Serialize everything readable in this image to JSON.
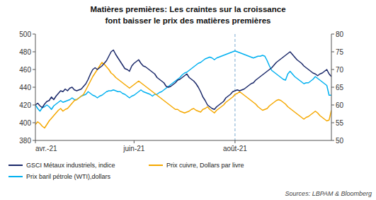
{
  "chart_data": {
    "type": "line",
    "title": "Matières premières: Les craintes sur la croissance",
    "subtitle": "font baisser le prix des matières premières",
    "source": "Sources: LBPAM & Bloomberg",
    "categories": [
      "avr.-21",
      null,
      null,
      null,
      null,
      null,
      null,
      null,
      null,
      null,
      null,
      null,
      null,
      null,
      null,
      null,
      null,
      null,
      null,
      null,
      null,
      null,
      null,
      null,
      null,
      null,
      null,
      null,
      null,
      null,
      null,
      null,
      null,
      null,
      null,
      null,
      null,
      null,
      null,
      null,
      null,
      null,
      null,
      "juin-21",
      null,
      null,
      null,
      null,
      null,
      null,
      null,
      null,
      null,
      null,
      null,
      null,
      null,
      null,
      null,
      null,
      null,
      null,
      null,
      null,
      null,
      null,
      null,
      null,
      null,
      null,
      null,
      null,
      null,
      null,
      null,
      null,
      null,
      null,
      null,
      null,
      null,
      null,
      null,
      null,
      null,
      null,
      null,
      "août-21",
      null,
      null,
      null,
      null,
      null,
      null,
      null,
      null,
      null,
      null,
      null,
      null,
      null,
      null,
      null,
      null,
      null,
      null,
      null,
      null,
      null,
      null,
      null,
      null,
      null,
      null,
      null,
      null,
      null,
      null,
      null,
      null,
      null,
      null,
      null,
      null,
      null,
      null,
      null,
      null,
      null,
      null
    ],
    "series": [
      {
        "name": "GSCI Métaux industriels, indice",
        "color": "#1a2869",
        "values": [
          420,
          422,
          419,
          417,
          421,
          424,
          425,
          429,
          426,
          430,
          433,
          436,
          435,
          438,
          436,
          439,
          440,
          437,
          436,
          437,
          438,
          441,
          444,
          449,
          455,
          460,
          462,
          460,
          462,
          464,
          467,
          470,
          475,
          480,
          482,
          477,
          473,
          469,
          465,
          461,
          460,
          458,
          464,
          467,
          469,
          471,
          467,
          464,
          463,
          461,
          459,
          457,
          455,
          451,
          449,
          447,
          445,
          441,
          440,
          441,
          443,
          445,
          448,
          449,
          451,
          453,
          455,
          451,
          449,
          447,
          444,
          440,
          435,
          429,
          425,
          420,
          418,
          416,
          415,
          418,
          420,
          422,
          424,
          428,
          430,
          432,
          435,
          436,
          437,
          436,
          437,
          438,
          440,
          442,
          444,
          445,
          448,
          450,
          452,
          454,
          456,
          458,
          460,
          462,
          465,
          468,
          470,
          472,
          474,
          476,
          478,
          480,
          477,
          474,
          471,
          469,
          467,
          464,
          462,
          460,
          458,
          456,
          455,
          453,
          455,
          456,
          458,
          460,
          455,
          452
        ]
      },
      {
        "name": "Prix cuivre, Dollars par livre",
        "color": "#f5a800",
        "values": [
          398,
          401,
          399,
          396,
          394,
          398,
          402,
          405,
          408,
          411,
          414,
          416,
          413,
          415,
          416,
          419,
          422,
          425,
          426,
          428,
          430,
          432,
          437,
          442,
          447,
          452,
          456,
          460,
          464,
          468,
          466,
          463,
          460,
          456,
          454,
          451,
          449,
          447,
          445,
          443,
          441,
          439,
          441,
          443,
          445,
          447,
          445,
          443,
          441,
          439,
          437,
          435,
          433,
          431,
          429,
          427,
          425,
          423,
          421,
          419,
          417,
          415,
          415,
          413,
          412,
          411,
          412,
          413,
          415,
          416,
          414,
          413,
          412,
          415,
          416,
          418,
          415,
          413,
          411,
          414,
          416,
          418,
          420,
          423,
          425,
          427,
          429,
          432,
          433,
          435,
          433,
          431,
          429,
          427,
          425,
          423,
          421,
          418,
          416,
          414,
          415,
          416,
          419,
          421,
          423,
          425,
          426,
          425,
          423,
          421,
          418,
          416,
          414,
          412,
          410,
          408,
          406,
          404,
          406,
          407,
          409,
          411,
          413,
          411,
          408,
          406,
          404,
          402,
          403,
          414
        ]
      },
      {
        "name": "Prix baril pétrole (WTI),dollars",
        "color": "#00b0f0",
        "values": [
          420,
          416,
          413,
          417,
          418,
          420,
          418,
          415,
          419,
          421,
          423,
          425,
          423,
          424,
          425,
          426,
          428,
          426,
          426,
          428,
          430,
          431,
          432,
          435,
          433,
          431,
          430,
          428,
          430,
          431,
          433,
          435,
          436,
          436,
          437,
          436,
          435,
          435,
          433,
          432,
          430,
          428,
          430,
          431,
          433,
          435,
          437,
          435,
          434,
          433,
          432,
          430,
          432,
          432,
          434,
          435,
          437,
          439,
          441,
          443,
          445,
          447,
          449,
          451,
          454,
          456,
          457,
          459,
          461,
          463,
          465,
          467,
          468,
          470,
          472,
          473,
          474,
          473,
          471,
          473,
          474,
          475,
          476,
          477,
          478,
          479,
          480,
          481,
          480,
          479,
          478,
          477,
          476,
          475,
          474,
          473,
          474,
          475,
          475,
          476,
          475,
          470,
          464,
          459,
          457,
          455,
          453,
          451,
          449,
          448,
          455,
          458,
          455,
          452,
          450,
          448,
          446,
          444,
          445,
          445,
          447,
          449,
          452,
          450,
          448,
          446,
          444,
          442,
          431,
          431
        ]
      }
    ],
    "reference_lines": [
      {
        "category": "août-21",
        "color": "#7aaad0",
        "line_style": "dashed"
      }
    ],
    "ylim": [
      380,
      500
    ],
    "yticks": [
      380,
      400,
      420,
      440,
      460,
      480,
      500
    ],
    "y2lim": [
      50,
      80
    ],
    "y2ticks": [
      50,
      55,
      60,
      65,
      70,
      75,
      80
    ],
    "grid": false,
    "legend": "bottom-left"
  }
}
